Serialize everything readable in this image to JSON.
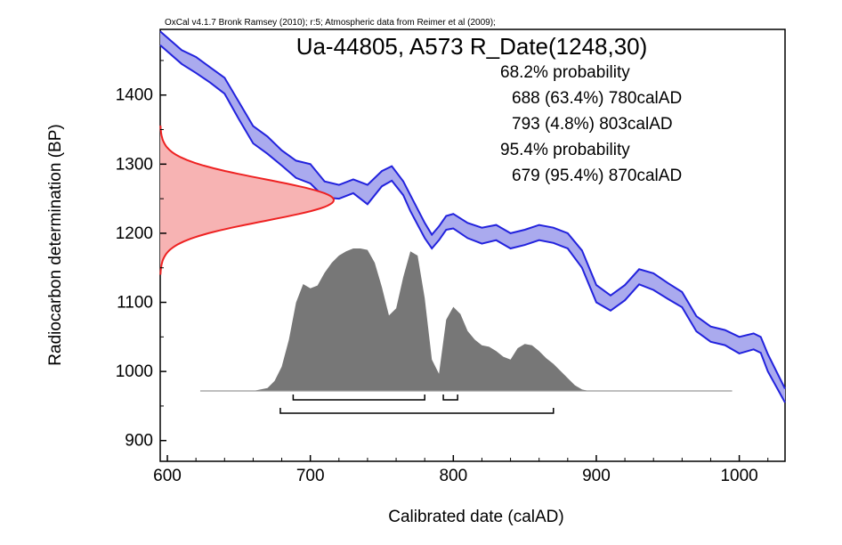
{
  "credit": "OxCal v4.1.7 Bronk Ramsey (2010); r:5; Atmospheric data from Reimer et al (2009);",
  "chart_data": {
    "type": "area",
    "title": "Ua-44805, A573 R_Date(1248,30)",
    "xlabel": "Calibrated date (calAD)",
    "ylabel": "Radiocarbon determination (BP)",
    "xlim": [
      595,
      1032
    ],
    "ylim": [
      870,
      1495
    ],
    "xticks": [
      600,
      700,
      800,
      900,
      1000
    ],
    "yticks": [
      900,
      1000,
      1100,
      1200,
      1300,
      1400
    ],
    "grid": false,
    "summary_lines": [
      "68.2% probability",
      "688 (63.4%) 780calAD",
      "793 (4.8%) 803calAD",
      "95.4% probability",
      "679 (95.4%) 870calAD"
    ],
    "calibration_curve": {
      "color": "#2222dd",
      "fill": "#aaaaee",
      "x": [
        595,
        610,
        620,
        630,
        640,
        650,
        660,
        670,
        680,
        690,
        700,
        710,
        720,
        730,
        740,
        750,
        757,
        765,
        770,
        780,
        785,
        790,
        795,
        800,
        810,
        820,
        830,
        840,
        850,
        860,
        870,
        880,
        890,
        900,
        910,
        920,
        930,
        940,
        950,
        960,
        970,
        980,
        990,
        1000,
        1010,
        1015,
        1020,
        1032
      ],
      "upper": [
        1492,
        1465,
        1455,
        1440,
        1425,
        1390,
        1355,
        1340,
        1320,
        1305,
        1300,
        1275,
        1270,
        1278,
        1270,
        1290,
        1297,
        1275,
        1255,
        1215,
        1198,
        1210,
        1225,
        1228,
        1215,
        1208,
        1212,
        1200,
        1205,
        1212,
        1208,
        1200,
        1175,
        1125,
        1110,
        1125,
        1148,
        1142,
        1128,
        1115,
        1080,
        1065,
        1060,
        1050,
        1055,
        1050,
        1025,
        975
      ],
      "lower": [
        1472,
        1445,
        1432,
        1418,
        1402,
        1365,
        1330,
        1315,
        1298,
        1280,
        1272,
        1252,
        1250,
        1258,
        1242,
        1268,
        1276,
        1255,
        1232,
        1193,
        1178,
        1190,
        1205,
        1207,
        1193,
        1185,
        1190,
        1178,
        1183,
        1190,
        1186,
        1178,
        1150,
        1100,
        1088,
        1103,
        1126,
        1118,
        1105,
        1093,
        1058,
        1043,
        1038,
        1026,
        1032,
        1027,
        1000,
        955
      ]
    },
    "radiocarbon_distribution": {
      "color": "#ee2222",
      "fill": "#f7b3b3",
      "mean_bp": 1248,
      "sd_bp": 30
    },
    "posterior_distribution": {
      "color": "#777777",
      "x": [
        623,
        660,
        670,
        675,
        680,
        685,
        690,
        695,
        700,
        705,
        710,
        715,
        720,
        725,
        730,
        735,
        740,
        745,
        750,
        755,
        760,
        765,
        770,
        775,
        780,
        785,
        790,
        795,
        800,
        805,
        810,
        815,
        820,
        825,
        830,
        835,
        840,
        845,
        850,
        855,
        860,
        865,
        870,
        875,
        880,
        885,
        890,
        895,
        900
      ],
      "density": [
        0,
        0,
        0.02,
        0.07,
        0.17,
        0.36,
        0.62,
        0.75,
        0.72,
        0.74,
        0.83,
        0.9,
        0.95,
        0.98,
        1.0,
        1.0,
        0.99,
        0.9,
        0.73,
        0.53,
        0.58,
        0.8,
        0.98,
        0.95,
        0.65,
        0.22,
        0.12,
        0.5,
        0.59,
        0.54,
        0.42,
        0.36,
        0.32,
        0.31,
        0.28,
        0.24,
        0.22,
        0.3,
        0.33,
        0.32,
        0.28,
        0.23,
        0.19,
        0.14,
        0.09,
        0.04,
        0.01,
        0,
        0
      ]
    },
    "range_bars": [
      {
        "label": "68.2%",
        "ranges": [
          [
            688,
            780
          ],
          [
            793,
            803
          ]
        ]
      },
      {
        "label": "95.4%",
        "ranges": [
          [
            679,
            870
          ]
        ]
      }
    ]
  }
}
